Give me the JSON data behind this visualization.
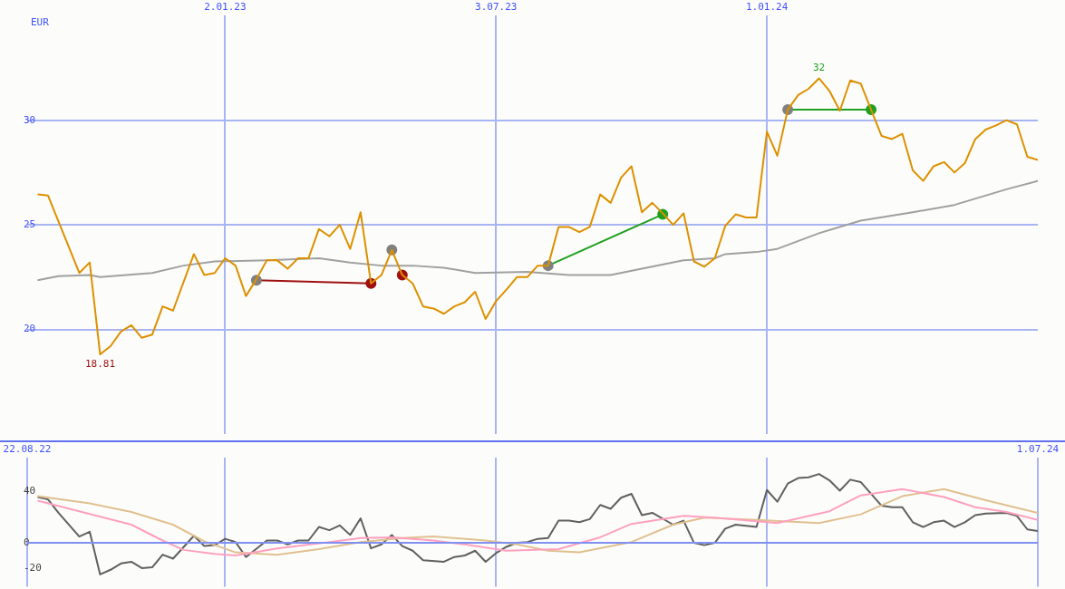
{
  "chart_data": [
    {
      "type": "line",
      "ylabel": "EUR",
      "xlim": [
        "2022-08-22",
        "2024-07-01"
      ],
      "ylim": [
        15,
        35
      ],
      "yticks": [
        20,
        25,
        30
      ],
      "xticks": [
        {
          "value": "2023-01-02",
          "label": "2.01.23"
        },
        {
          "value": "2023-07-03",
          "label": "3.07.23"
        },
        {
          "value": "2024-01-01",
          "label": "1.01.24"
        }
      ],
      "grid": true,
      "legend": false,
      "annotations": [
        {
          "text": "18.81",
          "x": "2022-10-10",
          "y": 18.81
        },
        {
          "text": "32",
          "x": "2024-02-05",
          "y": 32
        }
      ],
      "series": [
        {
          "color": "#dd9000",
          "x": [
            "2022-08-29",
            "2022-09-05",
            "2022-09-26",
            "2022-10-03",
            "2022-10-10",
            "2022-10-17",
            "2022-10-24",
            "2022-10-31",
            "2022-11-07",
            "2022-11-14",
            "2022-11-21",
            "2022-11-28",
            "2022-12-12",
            "2022-12-19",
            "2022-12-26",
            "2023-01-02",
            "2023-01-09",
            "2023-01-16",
            "2023-01-23",
            "2023-01-30",
            "2023-02-06",
            "2023-02-13",
            "2023-02-20",
            "2023-02-27",
            "2023-03-06",
            "2023-03-13",
            "2023-03-20",
            "2023-03-27",
            "2023-04-03",
            "2023-04-10",
            "2023-04-17",
            "2023-04-24",
            "2023-05-01",
            "2023-05-08",
            "2023-05-15",
            "2023-05-22",
            "2023-05-29",
            "2023-06-05",
            "2023-06-12",
            "2023-06-19",
            "2023-06-26",
            "2023-07-03",
            "2023-07-10",
            "2023-07-17",
            "2023-07-24",
            "2023-07-31",
            "2023-08-07",
            "2023-08-14",
            "2023-08-21",
            "2023-08-28",
            "2023-09-04",
            "2023-09-11",
            "2023-09-18",
            "2023-09-25",
            "2023-10-02",
            "2023-10-09",
            "2023-10-16",
            "2023-10-23",
            "2023-10-30",
            "2023-11-06",
            "2023-11-13",
            "2023-11-20",
            "2023-11-27",
            "2023-12-04",
            "2023-12-11",
            "2023-12-18",
            "2023-12-25",
            "2024-01-01",
            "2024-01-08",
            "2024-01-15",
            "2024-01-22",
            "2024-01-29",
            "2024-02-05",
            "2024-02-12",
            "2024-02-19",
            "2024-02-26",
            "2024-03-04",
            "2024-03-11",
            "2024-03-18",
            "2024-03-25",
            "2024-04-01",
            "2024-04-08",
            "2024-04-15",
            "2024-04-22",
            "2024-04-29",
            "2024-05-06",
            "2024-05-13",
            "2024-05-20",
            "2024-05-27",
            "2024-06-03",
            "2024-06-10",
            "2024-06-17",
            "2024-06-24",
            "2024-07-01"
          ],
          "values": [
            26.46,
            26.4,
            22.7,
            23.2,
            18.81,
            19.2,
            19.9,
            20.2,
            19.6,
            19.75,
            21.1,
            20.9,
            23.6,
            22.6,
            22.7,
            23.4,
            23.05,
            21.6,
            22.4,
            23.3,
            23.3,
            22.9,
            23.4,
            23.4,
            24.8,
            24.45,
            25.0,
            23.85,
            25.6,
            22.2,
            22.6,
            23.8,
            22.6,
            22.2,
            21.1,
            21.0,
            20.75,
            21.1,
            21.3,
            21.8,
            20.5,
            21.35,
            21.9,
            22.5,
            22.5,
            23.05,
            23.05,
            24.9,
            24.9,
            24.65,
            24.9,
            26.45,
            26.05,
            27.25,
            27.8,
            25.6,
            26.05,
            25.55,
            25.0,
            25.55,
            23.25,
            23.0,
            23.4,
            24.95,
            25.5,
            25.35,
            25.35,
            29.45,
            28.3,
            30.5,
            31.2,
            31.5,
            32.0,
            31.4,
            30.45,
            31.9,
            31.75,
            30.5,
            29.25,
            29.1,
            29.35,
            27.6,
            27.1,
            27.8,
            28.0,
            27.5,
            27.95,
            29.1,
            29.55,
            29.75,
            30.0,
            29.8,
            28.25,
            28.1
          ]
        },
        {
          "color": "#a0a0a0",
          "x": [
            "2022-08-29",
            "2022-09-12",
            "2022-10-03",
            "2022-10-10",
            "2022-11-14",
            "2022-12-05",
            "2022-12-26",
            "2023-01-30",
            "2023-03-06",
            "2023-03-27",
            "2023-04-17",
            "2023-05-08",
            "2023-05-29",
            "2023-06-19",
            "2023-07-24",
            "2023-08-21",
            "2023-09-18",
            "2023-10-09",
            "2023-11-06",
            "2023-11-27",
            "2023-12-04",
            "2023-12-25",
            "2024-01-08",
            "2024-02-05",
            "2024-03-04",
            "2024-04-08",
            "2024-05-06",
            "2024-06-10",
            "2024-07-01"
          ],
          "values": [
            22.35,
            22.55,
            22.6,
            22.5,
            22.7,
            23.05,
            23.25,
            23.3,
            23.4,
            23.2,
            23.05,
            23.05,
            22.95,
            22.7,
            22.75,
            22.6,
            22.6,
            22.9,
            23.3,
            23.4,
            23.6,
            23.7,
            23.85,
            24.6,
            25.2,
            25.6,
            25.95,
            26.7,
            27.1
          ]
        },
        {
          "type": "line",
          "marker": "circle",
          "color": "#a01010",
          "colors": [
            "#808080",
            "#a01010"
          ],
          "x": [
            "2023-01-23",
            "2023-04-10"
          ],
          "values": [
            22.35,
            22.2
          ]
        },
        {
          "type": "scatter",
          "marker": "circle",
          "color": "#a01010",
          "colors": [
            "#808080",
            "#a01010"
          ],
          "x": [
            "2023-04-24",
            "2023-05-01"
          ],
          "values": [
            23.8,
            22.6
          ]
        },
        {
          "type": "line",
          "marker": "circle",
          "color": "#20a020",
          "colors": [
            "#808080",
            "#20a020"
          ],
          "x": [
            "2023-08-07",
            "2023-10-23"
          ],
          "values": [
            23.05,
            25.5
          ]
        },
        {
          "type": "line",
          "marker": "circle",
          "color": "#20a020",
          "colors": [
            "#808080",
            "#20a020"
          ],
          "x": [
            "2024-01-15",
            "2024-03-11"
          ],
          "values": [
            30.5,
            30.5
          ]
        }
      ]
    },
    {
      "type": "line",
      "xlim": [
        "2022-08-22",
        "2024-07-01"
      ],
      "ylim": [
        -34,
        66
      ],
      "yticks": [
        40,
        0,
        -20
      ],
      "xticks": [
        {
          "value": "2022-08-22",
          "label": "22.08.22"
        },
        {
          "value": "2023-01-02",
          "label": null
        },
        {
          "value": "2023-07-03",
          "label": null
        },
        {
          "value": "2024-01-01",
          "label": null
        },
        {
          "value": "2024-07-01",
          "label": "1.07.24"
        }
      ],
      "grid": "x",
      "legend": false,
      "ref_lines": [
        {
          "axis": "y",
          "value": 0,
          "color": "#8090f0"
        }
      ],
      "series": [
        {
          "color": "#ffa0c0",
          "x": [
            "2022-08-29",
            "2022-09-26",
            "2022-10-31",
            "2022-11-21",
            "2022-12-05",
            "2022-12-26",
            "2023-01-09",
            "2023-02-06",
            "2023-03-13",
            "2023-04-03",
            "2023-04-24",
            "2023-05-22",
            "2023-06-12",
            "2023-07-10",
            "2023-08-14",
            "2023-09-11",
            "2023-10-02",
            "2023-11-06",
            "2023-11-27",
            "2024-01-08",
            "2024-02-12",
            "2024-03-04",
            "2024-04-01",
            "2024-04-29",
            "2024-05-20",
            "2024-06-10",
            "2024-07-01"
          ],
          "values": [
            32.8,
            24.5,
            14.1,
            1.8,
            -5.5,
            -8.6,
            -9.8,
            -4.3,
            0.6,
            3.7,
            4.3,
            1.8,
            -1.2,
            -6.1,
            -4.9,
            4.3,
            14.7,
            20.9,
            19.6,
            15.3,
            24.5,
            36.8,
            41.7,
            35.6,
            27.6,
            23.9,
            17.8
          ]
        },
        {
          "color": "#e0c090",
          "x": [
            "2022-08-29",
            "2022-10-03",
            "2022-10-31",
            "2022-11-28",
            "2022-12-19",
            "2023-01-09",
            "2023-02-06",
            "2023-03-06",
            "2023-04-03",
            "2023-05-01",
            "2023-05-22",
            "2023-06-26",
            "2023-07-17",
            "2023-08-07",
            "2023-08-28",
            "2023-10-02",
            "2023-10-30",
            "2023-11-20",
            "2023-12-25",
            "2024-02-05",
            "2024-03-04",
            "2024-04-01",
            "2024-04-29",
            "2024-05-27",
            "2024-07-01"
          ],
          "values": [
            36.2,
            30.7,
            23.9,
            14.1,
            1.2,
            -7.4,
            -9.2,
            -4.9,
            0.6,
            3.7,
            4.9,
            1.8,
            -1.2,
            -6.1,
            -7.4,
            0.6,
            14.1,
            19.6,
            17.8,
            15.3,
            22.1,
            36.2,
            41.7,
            33.1,
            23.3
          ]
        },
        {
          "color": "#606060",
          "x": [
            "2022-08-29",
            "2022-09-05",
            "2022-09-12",
            "2022-09-26",
            "2022-10-03",
            "2022-10-10",
            "2022-10-17",
            "2022-10-24",
            "2022-10-31",
            "2022-11-07",
            "2022-11-14",
            "2022-11-21",
            "2022-11-28",
            "2022-12-12",
            "2022-12-19",
            "2022-12-26",
            "2023-01-02",
            "2023-01-09",
            "2023-01-16",
            "2023-01-30",
            "2023-02-06",
            "2023-02-13",
            "2023-02-20",
            "2023-02-27",
            "2023-03-06",
            "2023-03-13",
            "2023-03-20",
            "2023-03-27",
            "2023-04-03",
            "2023-04-10",
            "2023-04-17",
            "2023-04-24",
            "2023-05-01",
            "2023-05-08",
            "2023-05-15",
            "2023-05-29",
            "2023-06-05",
            "2023-06-12",
            "2023-06-19",
            "2023-06-26",
            "2023-07-03",
            "2023-07-10",
            "2023-07-17",
            "2023-07-24",
            "2023-07-31",
            "2023-08-07",
            "2023-08-14",
            "2023-08-21",
            "2023-08-28",
            "2023-09-04",
            "2023-09-11",
            "2023-09-18",
            "2023-09-25",
            "2023-10-02",
            "2023-10-09",
            "2023-10-16",
            "2023-10-30",
            "2023-11-06",
            "2023-11-13",
            "2023-11-20",
            "2023-11-27",
            "2023-12-04",
            "2023-12-11",
            "2023-12-25",
            "2024-01-01",
            "2024-01-08",
            "2024-01-15",
            "2024-01-22",
            "2024-01-29",
            "2024-02-05",
            "2024-02-12",
            "2024-02-19",
            "2024-02-26",
            "2024-03-04",
            "2024-03-18",
            "2024-03-25",
            "2024-04-01",
            "2024-04-08",
            "2024-04-15",
            "2024-04-22",
            "2024-04-29",
            "2024-05-06",
            "2024-05-13",
            "2024-05-20",
            "2024-05-27",
            "2024-06-10",
            "2024-06-17",
            "2024-06-24",
            "2024-07-01"
          ],
          "values": [
            35.6,
            33.7,
            23.3,
            4.9,
            8.6,
            -24.5,
            -20.9,
            -16,
            -14.7,
            -19.6,
            -19,
            -9.2,
            -12.3,
            5.5,
            -2.5,
            -1.8,
            3.1,
            0.6,
            -11,
            1.8,
            1.8,
            -1.2,
            1.8,
            1.8,
            12.3,
            9.8,
            13.5,
            6.1,
            19,
            -4.3,
            -1.2,
            6.1,
            -2.5,
            -6.1,
            -13.5,
            -14.7,
            -11,
            -9.8,
            -6.1,
            -14.7,
            -8,
            -3.1,
            0,
            0.6,
            3.1,
            3.7,
            17.2,
            17.2,
            16,
            18.4,
            29.4,
            26.4,
            35,
            38,
            21.5,
            23.3,
            14.1,
            17.2,
            0,
            -1.8,
            0,
            11,
            14.1,
            12.3,
            41,
            31.9,
            46,
            50.3,
            50.9,
            53.4,
            48.5,
            40.5,
            49,
            47.2,
            28.8,
            27.6,
            27.6,
            16,
            12.3,
            16,
            17.2,
            12.3,
            16,
            21.5,
            22.7,
            23.3,
            20.9,
            10.4,
            9.2
          ]
        }
      ]
    }
  ]
}
